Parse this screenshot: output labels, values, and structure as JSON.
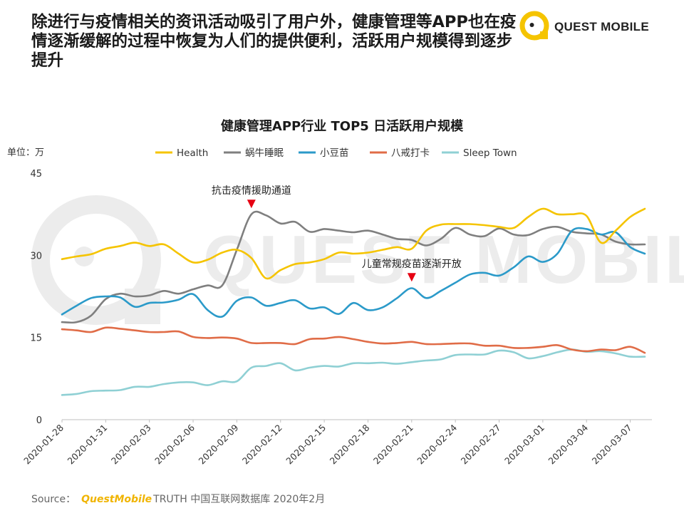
{
  "headline": "除进行与疫情相关的资讯活动吸引了用户外，健康管理等APP也在疫情逐渐缓解的过程中恢复为人们的提供便利，活跃用户规模得到逐步提升",
  "logo": {
    "text": "QUEST MOBILE",
    "watermark_text": "QUEST MOBILE"
  },
  "footer": {
    "label": "Source：",
    "brand": "QuestMobile",
    "rest": "TRUTH 中国互联网数据库 2020年2月"
  },
  "colors": {
    "accent": "#f5c400"
  },
  "chart_data": {
    "type": "line",
    "title": "健康管理APP行业 TOP5 日活跃用户规模",
    "unit_label": "单位：万",
    "ylim": [
      0,
      45
    ],
    "yticks": [
      0,
      15,
      30,
      45
    ],
    "xticks": [
      "2020-01-28",
      "2020-01-31",
      "2020-02-03",
      "2020-02-06",
      "2020-02-09",
      "2020-02-12",
      "2020-02-15",
      "2020-02-18",
      "2020-02-21",
      "2020-02-24",
      "2020-02-27",
      "2020-03-01",
      "2020-03-04",
      "2020-03-07"
    ],
    "xtick_indices": [
      0,
      3,
      6,
      9,
      12,
      15,
      18,
      21,
      24,
      27,
      30,
      33,
      36,
      39
    ],
    "num_points": 41,
    "series": [
      {
        "name": "Health",
        "color": "#f5c400",
        "values": [
          29.3,
          29.8,
          30.2,
          31.2,
          31.7,
          32.3,
          31.7,
          32.0,
          30.3,
          28.7,
          29.2,
          30.5,
          31.0,
          29.5,
          25.8,
          27.3,
          28.4,
          28.7,
          29.3,
          30.5,
          30.3,
          30.5,
          31.0,
          31.5,
          31.2,
          34.5,
          35.6,
          35.7,
          35.7,
          35.5,
          35.2,
          35.0,
          37.0,
          38.5,
          37.5,
          37.5,
          37.2,
          32.3,
          34.5,
          37.0,
          38.5
        ]
      },
      {
        "name": "蜗牛睡眠",
        "color": "#7f7f7f",
        "values": [
          17.8,
          17.8,
          19.0,
          22.0,
          23.0,
          22.5,
          22.7,
          23.5,
          23.0,
          23.8,
          24.5,
          24.5,
          31.0,
          37.5,
          37.3,
          35.8,
          36.1,
          34.3,
          34.8,
          34.5,
          34.2,
          34.5,
          33.8,
          33.0,
          32.8,
          31.8,
          33.0,
          35.0,
          33.8,
          33.5,
          34.9,
          33.8,
          33.7,
          34.8,
          35.2,
          34.3,
          34.0,
          33.8,
          32.5,
          32.0,
          32.0
        ]
      },
      {
        "name": "小豆苗",
        "color": "#2b9ac9",
        "values": [
          19.2,
          20.8,
          22.2,
          22.5,
          22.3,
          20.6,
          21.3,
          21.4,
          21.9,
          22.9,
          20.0,
          18.8,
          21.7,
          22.3,
          20.8,
          21.3,
          21.8,
          20.3,
          20.5,
          19.3,
          21.3,
          20.0,
          20.5,
          22.2,
          24.0,
          22.2,
          23.5,
          25.0,
          26.5,
          26.8,
          26.3,
          27.8,
          29.8,
          28.8,
          30.3,
          34.5,
          34.8,
          33.8,
          34.2,
          31.5,
          30.3
        ]
      },
      {
        "name": "八戒打卡",
        "color": "#e06c47",
        "values": [
          16.5,
          16.3,
          16.0,
          16.8,
          16.6,
          16.3,
          16.0,
          16.0,
          16.1,
          15.1,
          14.9,
          15.0,
          14.8,
          14.0,
          14.0,
          14.0,
          13.8,
          14.7,
          14.8,
          15.1,
          14.7,
          14.2,
          13.9,
          14.0,
          14.2,
          13.8,
          13.8,
          13.9,
          13.9,
          13.5,
          13.5,
          13.1,
          13.1,
          13.3,
          13.6,
          12.8,
          12.5,
          12.8,
          12.7,
          13.3,
          12.2
        ]
      },
      {
        "name": "Sleep Town",
        "color": "#8fd0d4",
        "values": [
          4.5,
          4.7,
          5.2,
          5.3,
          5.4,
          6.0,
          6.0,
          6.5,
          6.8,
          6.8,
          6.3,
          7.0,
          7.0,
          9.5,
          9.8,
          10.3,
          9.0,
          9.5,
          9.8,
          9.7,
          10.3,
          10.3,
          10.4,
          10.2,
          10.5,
          10.8,
          11.0,
          11.8,
          11.9,
          11.9,
          12.6,
          12.3,
          11.2,
          11.6,
          12.3,
          12.8,
          12.4,
          12.5,
          12.1,
          11.5,
          11.5
        ]
      }
    ],
    "annotations": [
      {
        "text": "抗击疫情援助通道",
        "index": 13,
        "value": 38.6
      },
      {
        "text": "儿童常规疫苗逐渐开放",
        "index": 24,
        "value": 25.2
      }
    ]
  }
}
